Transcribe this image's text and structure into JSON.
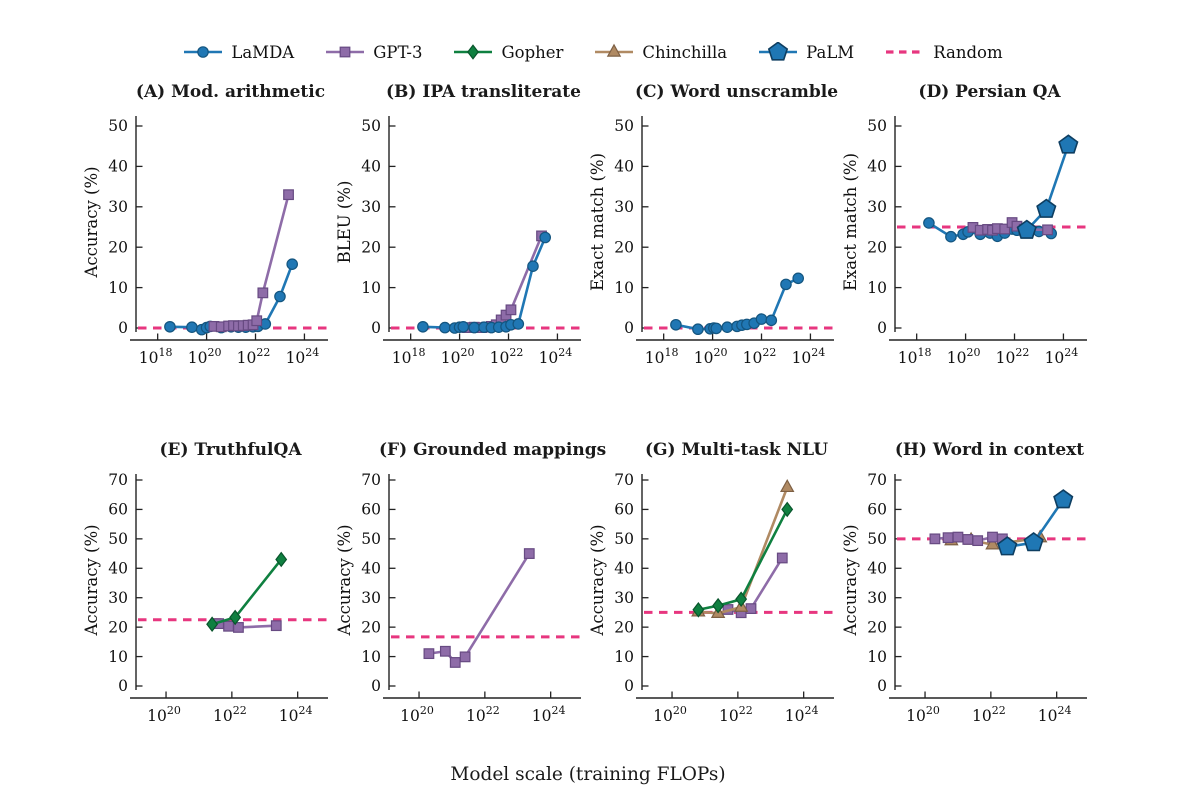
{
  "figure": {
    "xlabel": "Model scale (training FLOPs)",
    "random_color": "#e7367f",
    "axis_color": "#222222"
  },
  "models": {
    "LaMDA": {
      "marker": "circle",
      "color": "#2077b4",
      "edge": "#14557f"
    },
    "GPT-3": {
      "marker": "square",
      "color": "#8e6ca8",
      "edge": "#674a82"
    },
    "Gopher": {
      "marker": "diamond",
      "color": "#0f8040",
      "edge": "#09552c"
    },
    "Chinchilla": {
      "marker": "triangle",
      "color": "#b08a63",
      "edge": "#7e6044"
    },
    "PaLM": {
      "marker": "pentagon",
      "color": "#1f77b4",
      "edge": "#0e3e61"
    },
    "Random": {
      "marker": "dash",
      "color": "#e7367f",
      "edge": "#e7367f"
    }
  },
  "legend": [
    "LaMDA",
    "GPT-3",
    "Gopher",
    "Chinchilla",
    "PaLM",
    "Random"
  ],
  "chart_data": [
    {
      "id": "A",
      "type": "line",
      "title": "(A) Mod. arithmetic",
      "ylabel": "Accuracy (%)",
      "xscale": "log10",
      "xlim": [
        17.4,
        24.8
      ],
      "xticks": [
        18,
        20,
        22,
        24
      ],
      "ylim": [
        0,
        50
      ],
      "yticks": [
        0,
        10,
        20,
        30,
        40,
        50
      ],
      "random": 0,
      "series": [
        {
          "name": "LaMDA",
          "points": [
            [
              18.5,
              0.3
            ],
            [
              19.4,
              0.2
            ],
            [
              19.8,
              -0.4
            ],
            [
              20.0,
              0.1
            ],
            [
              20.15,
              0.4
            ],
            [
              20.6,
              0.1
            ],
            [
              21.0,
              0.3
            ],
            [
              21.3,
              0.2
            ],
            [
              21.6,
              0.2
            ],
            [
              21.9,
              0.3
            ],
            [
              22.1,
              0.4
            ],
            [
              22.4,
              1.0
            ],
            [
              23.0,
              7.8
            ],
            [
              23.5,
              15.8
            ]
          ]
        },
        {
          "name": "GPT-3",
          "points": [
            [
              20.3,
              0.4
            ],
            [
              20.6,
              0.3
            ],
            [
              20.9,
              0.5
            ],
            [
              21.1,
              0.6
            ],
            [
              21.3,
              0.5
            ],
            [
              21.5,
              0.6
            ],
            [
              21.7,
              0.7
            ],
            [
              21.9,
              0.8
            ],
            [
              22.05,
              1.8
            ],
            [
              22.3,
              8.7
            ],
            [
              23.35,
              33.0
            ]
          ]
        }
      ]
    },
    {
      "id": "B",
      "type": "line",
      "title": "(B) IPA transliterate",
      "ylabel": "BLEU (%)",
      "xscale": "log10",
      "xlim": [
        17.4,
        24.8
      ],
      "xticks": [
        18,
        20,
        22,
        24
      ],
      "ylim": [
        0,
        50
      ],
      "yticks": [
        0,
        10,
        20,
        30,
        40,
        50
      ],
      "random": 0,
      "series": [
        {
          "name": "GPT-3",
          "points": [
            [
              20.3,
              0.1
            ],
            [
              20.6,
              0.2
            ],
            [
              20.9,
              0.1
            ],
            [
              21.1,
              0.2
            ],
            [
              21.3,
              0.4
            ],
            [
              21.5,
              0.8
            ],
            [
              21.7,
              2.0
            ],
            [
              21.9,
              3.2
            ],
            [
              22.1,
              4.5
            ],
            [
              23.35,
              22.8
            ]
          ]
        },
        {
          "name": "LaMDA",
          "points": [
            [
              18.5,
              0.3
            ],
            [
              19.4,
              0.1
            ],
            [
              19.8,
              0.0
            ],
            [
              20.0,
              0.2
            ],
            [
              20.15,
              0.3
            ],
            [
              20.6,
              0.1
            ],
            [
              21.0,
              0.2
            ],
            [
              21.3,
              0.1
            ],
            [
              21.6,
              0.2
            ],
            [
              21.9,
              0.3
            ],
            [
              22.1,
              0.8
            ],
            [
              22.4,
              1.0
            ],
            [
              23.0,
              15.3
            ],
            [
              23.5,
              22.4
            ]
          ]
        }
      ]
    },
    {
      "id": "C",
      "type": "line",
      "title": "(C) Word unscramble",
      "ylabel": "Exact match (%)",
      "xscale": "log10",
      "xlim": [
        17.4,
        24.8
      ],
      "xticks": [
        18,
        20,
        22,
        24
      ],
      "ylim": [
        0,
        50
      ],
      "yticks": [
        0,
        10,
        20,
        30,
        40,
        50
      ],
      "random": 0,
      "series": [
        {
          "name": "LaMDA",
          "points": [
            [
              18.5,
              0.8
            ],
            [
              19.4,
              -0.3
            ],
            [
              19.9,
              -0.2
            ],
            [
              20.05,
              0.0
            ],
            [
              20.15,
              -0.1
            ],
            [
              20.6,
              0.2
            ],
            [
              21.0,
              0.4
            ],
            [
              21.2,
              0.7
            ],
            [
              21.4,
              0.9
            ],
            [
              21.7,
              1.2
            ],
            [
              22.0,
              2.2
            ],
            [
              22.4,
              1.9
            ],
            [
              23.0,
              10.8
            ],
            [
              23.5,
              12.3
            ]
          ]
        }
      ]
    },
    {
      "id": "D",
      "type": "line",
      "title": "(D) Persian QA",
      "ylabel": "Exact match (%)",
      "xscale": "log10",
      "xlim": [
        17.4,
        24.8
      ],
      "xticks": [
        18,
        20,
        22,
        24
      ],
      "ylim": [
        0,
        50
      ],
      "yticks": [
        0,
        10,
        20,
        30,
        40,
        50
      ],
      "random": 25,
      "series": [
        {
          "name": "LaMDA",
          "points": [
            [
              18.5,
              26.0
            ],
            [
              19.4,
              22.6
            ],
            [
              19.9,
              23.2
            ],
            [
              20.1,
              23.8
            ],
            [
              20.6,
              23.2
            ],
            [
              21.0,
              23.5
            ],
            [
              21.3,
              22.7
            ],
            [
              21.6,
              23.5
            ],
            [
              21.9,
              24.5
            ],
            [
              22.1,
              24.2
            ],
            [
              22.4,
              23.6
            ],
            [
              23.0,
              23.9
            ],
            [
              23.5,
              23.4
            ]
          ]
        },
        {
          "name": "GPT-3",
          "points": [
            [
              20.3,
              24.9
            ],
            [
              20.6,
              24.2
            ],
            [
              20.9,
              24.4
            ],
            [
              21.1,
              24.2
            ],
            [
              21.3,
              24.6
            ],
            [
              21.6,
              24.5
            ],
            [
              21.9,
              26.1
            ],
            [
              22.1,
              25.2
            ],
            [
              22.4,
              24.4
            ],
            [
              23.35,
              24.3
            ]
          ]
        },
        {
          "name": "PaLM",
          "points": [
            [
              22.5,
              24.2
            ],
            [
              23.3,
              29.4
            ],
            [
              24.2,
              45.3
            ]
          ]
        }
      ]
    },
    {
      "id": "E",
      "type": "line",
      "title": "(E) TruthfulQA",
      "ylabel": "Accuracy (%)",
      "xscale": "log10",
      "xlim": [
        19.3,
        24.8
      ],
      "xticks": [
        20,
        22,
        24
      ],
      "ylim": [
        0,
        70
      ],
      "yticks": [
        0,
        10,
        20,
        30,
        40,
        50,
        60,
        70
      ],
      "random": 22.5,
      "series": [
        {
          "name": "GPT-3",
          "points": [
            [
              21.6,
              21.2
            ],
            [
              21.9,
              20.3
            ],
            [
              22.2,
              19.9
            ],
            [
              23.35,
              20.5
            ]
          ]
        },
        {
          "name": "Gopher",
          "points": [
            [
              21.4,
              21.0
            ],
            [
              22.1,
              23.3
            ],
            [
              23.5,
              43.0
            ]
          ]
        }
      ]
    },
    {
      "id": "F",
      "type": "line",
      "title": "(F) Grounded mappings",
      "ylabel": "Accuracy (%)",
      "xscale": "log10",
      "xlim": [
        19.3,
        24.8
      ],
      "xticks": [
        20,
        22,
        24
      ],
      "ylim": [
        0,
        70
      ],
      "yticks": [
        0,
        10,
        20,
        30,
        40,
        50,
        60,
        70
      ],
      "random": 16.7,
      "series": [
        {
          "name": "GPT-3",
          "points": [
            [
              20.3,
              11.0
            ],
            [
              20.8,
              11.8
            ],
            [
              21.1,
              8.0
            ],
            [
              21.4,
              9.9
            ],
            [
              23.35,
              45.0
            ]
          ]
        }
      ]
    },
    {
      "id": "G",
      "type": "line",
      "title": "(G) Multi-task NLU",
      "ylabel": "Accuracy (%)",
      "xscale": "log10",
      "xlim": [
        19.3,
        24.8
      ],
      "xticks": [
        20,
        22,
        24
      ],
      "ylim": [
        0,
        70
      ],
      "yticks": [
        0,
        10,
        20,
        30,
        40,
        50,
        60,
        70
      ],
      "random": 25,
      "series": [
        {
          "name": "GPT-3",
          "points": [
            [
              21.7,
              26.0
            ],
            [
              22.1,
              24.9
            ],
            [
              22.4,
              26.3
            ],
            [
              23.35,
              43.5
            ]
          ]
        },
        {
          "name": "Chinchilla",
          "points": [
            [
              20.8,
              25.2
            ],
            [
              21.4,
              24.7
            ],
            [
              22.1,
              26.8
            ],
            [
              23.5,
              67.5
            ]
          ]
        },
        {
          "name": "Gopher",
          "points": [
            [
              20.8,
              25.9
            ],
            [
              21.4,
              27.3
            ],
            [
              22.1,
              29.5
            ],
            [
              23.5,
              60.0
            ]
          ]
        }
      ]
    },
    {
      "id": "H",
      "type": "line",
      "title": "(H) Word in context",
      "ylabel": "Accuracy (%)",
      "xscale": "log10",
      "xlim": [
        19.3,
        24.8
      ],
      "xticks": [
        20,
        22,
        24
      ],
      "ylim": [
        0,
        70
      ],
      "yticks": [
        0,
        10,
        20,
        30,
        40,
        50,
        60,
        70
      ],
      "random": 50,
      "series": [
        {
          "name": "Chinchilla",
          "points": [
            [
              20.8,
              49.4
            ],
            [
              21.4,
              49.6
            ],
            [
              22.05,
              48.0
            ],
            [
              23.5,
              50.4
            ]
          ]
        },
        {
          "name": "GPT-3",
          "points": [
            [
              20.3,
              50.0
            ],
            [
              20.7,
              50.4
            ],
            [
              21.0,
              50.6
            ],
            [
              21.3,
              49.8
            ],
            [
              21.6,
              49.4
            ],
            [
              22.05,
              50.6
            ],
            [
              22.35,
              50.0
            ]
          ]
        },
        {
          "name": "PaLM",
          "points": [
            [
              22.5,
              47.3
            ],
            [
              23.3,
              48.7
            ],
            [
              24.2,
              63.3
            ]
          ]
        }
      ]
    }
  ]
}
